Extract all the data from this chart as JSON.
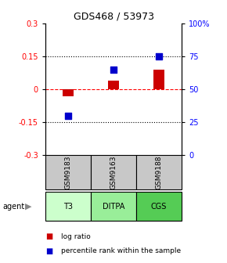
{
  "title": "GDS468 / 53973",
  "samples": [
    "GSM9183",
    "GSM9163",
    "GSM9188"
  ],
  "agents": [
    "T3",
    "DITPA",
    "CGS"
  ],
  "log_ratios": [
    -0.03,
    0.04,
    0.09
  ],
  "percentile_ranks": [
    30,
    65,
    75
  ],
  "ylim_left": [
    -0.3,
    0.3
  ],
  "ylim_right": [
    0,
    100
  ],
  "yticks_left": [
    -0.3,
    -0.15,
    0,
    0.15,
    0.3
  ],
  "yticks_right": [
    0,
    25,
    50,
    75,
    100
  ],
  "ytick_labels_left": [
    "-0.3",
    "-0.15",
    "0",
    "0.15",
    "0.3"
  ],
  "ytick_labels_right": [
    "0",
    "25",
    "50",
    "75",
    "100%"
  ],
  "hlines_dotted": [
    -0.15,
    0.15
  ],
  "hline_dashed": 0,
  "bar_color": "#cc0000",
  "dot_color": "#0000cc",
  "agent_colors": [
    "#ccffcc",
    "#99ee99",
    "#55cc55"
  ],
  "sample_bg_color": "#c8c8c8",
  "bar_width": 0.25,
  "dot_size": 35,
  "legend_bar_color": "#cc0000",
  "legend_dot_color": "#0000cc"
}
